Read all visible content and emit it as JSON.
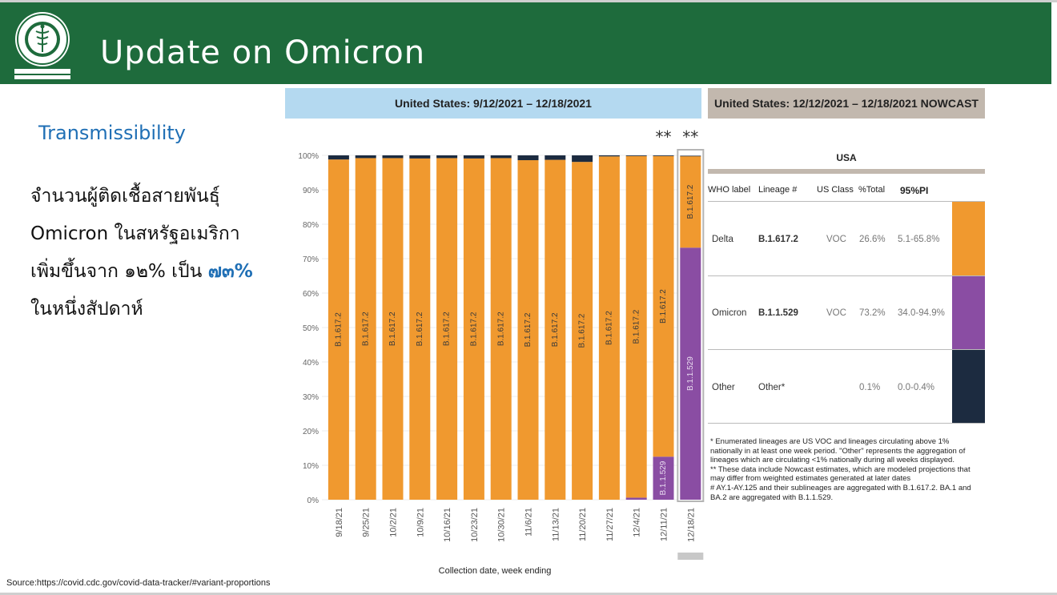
{
  "header": {
    "title": "Update on Omicron"
  },
  "slide": {
    "subheading": "Transmissibility",
    "thai_lines": [
      "จำนวนผู้ติดเชื้อสายพันธุ์",
      "Omicron ในสหรัฐอเมริกา"
    ],
    "thai_line3_prefix": "เพิ่มขึ้นจาก ๑๒% เป็น ",
    "thai_line3_highlight": "๗๓%",
    "thai_line4": "ในหนึ่งสัปดาห์",
    "source": "Source:https://covid.cdc.gov/covid-data-tracker/#variant-proportions"
  },
  "colors": {
    "delta": "#f0992f",
    "omicron": "#8a4da3",
    "other": "#1c2b40",
    "header": "#1e6b3c",
    "accent": "#1f6fb5"
  },
  "chart_data": {
    "type": "bar",
    "stacked": true,
    "title": "United States: 9/12/2021 – 12/18/2021",
    "xlabel": "Collection date, week ending",
    "ylabel": "",
    "ylim": [
      0,
      100
    ],
    "yticks": [
      "0%",
      "10%",
      "20%",
      "30%",
      "40%",
      "50%",
      "60%",
      "70%",
      "80%",
      "90%",
      "100%"
    ],
    "categories": [
      "9/18/21",
      "9/25/21",
      "10/2/21",
      "10/9/21",
      "10/16/21",
      "10/23/21",
      "10/30/21",
      "11/6/21",
      "11/13/21",
      "11/20/21",
      "11/27/21",
      "12/4/21",
      "12/11/21",
      "12/18/21"
    ],
    "nowcast_marker": "**",
    "nowcast_marker_indexes": [
      12,
      13
    ],
    "series": [
      {
        "name": "B.1.1.529",
        "color": "#8a4da3",
        "values": [
          0,
          0,
          0,
          0,
          0,
          0,
          0,
          0,
          0,
          0,
          0,
          0.6,
          12.5,
          73.2
        ],
        "label_indexes": [
          12,
          13
        ]
      },
      {
        "name": "B.1.617.2",
        "color": "#f0992f",
        "values": [
          98.8,
          99.2,
          99.2,
          99.1,
          99.2,
          99.1,
          99.2,
          98.6,
          98.7,
          98.1,
          99.7,
          99.2,
          87.3,
          26.6
        ],
        "label_indexes": [
          0,
          1,
          2,
          3,
          4,
          5,
          6,
          7,
          8,
          9,
          10,
          11,
          12,
          13
        ]
      },
      {
        "name": "Other",
        "color": "#1c2b40",
        "values": [
          1.2,
          0.8,
          0.8,
          0.9,
          0.8,
          0.9,
          0.8,
          1.4,
          1.3,
          1.9,
          0.3,
          0.2,
          0.2,
          0.1
        ],
        "label_indexes": []
      }
    ]
  },
  "nowcast": {
    "title": "United States: 12/12/2021 – 12/18/2021 NOWCAST",
    "region": "USA",
    "columns": [
      "WHO label",
      "Lineage #",
      "US Class",
      "%Total",
      "95%PI"
    ],
    "rows": [
      {
        "who": "Delta",
        "lineage": "B.1.617.2",
        "class": "VOC",
        "total": "26.6%",
        "pi": "5.1-65.8%"
      },
      {
        "who": "Omicron",
        "lineage": "B.1.1.529",
        "class": "VOC",
        "total": "73.2%",
        "pi": "34.0-94.9%"
      },
      {
        "who": "Other",
        "lineage": "Other*",
        "class": "",
        "total": "0.1%",
        "pi": "0.0-0.4%"
      }
    ],
    "notes": [
      "*      Enumerated lineages are US VOC and lineages circulating above 1% nationally in at least one week period. \"Other\" represents the aggregation of lineages which are circulating <1% nationally during all weeks displayed.",
      "**     These data include Nowcast estimates, which are modeled projections that may differ from weighted estimates generated at later dates",
      "#      AY.1-AY.125 and their sublineages are aggregated with B.1.617.2. BA.1 and BA.2 are aggregated with B.1.1.529."
    ]
  }
}
